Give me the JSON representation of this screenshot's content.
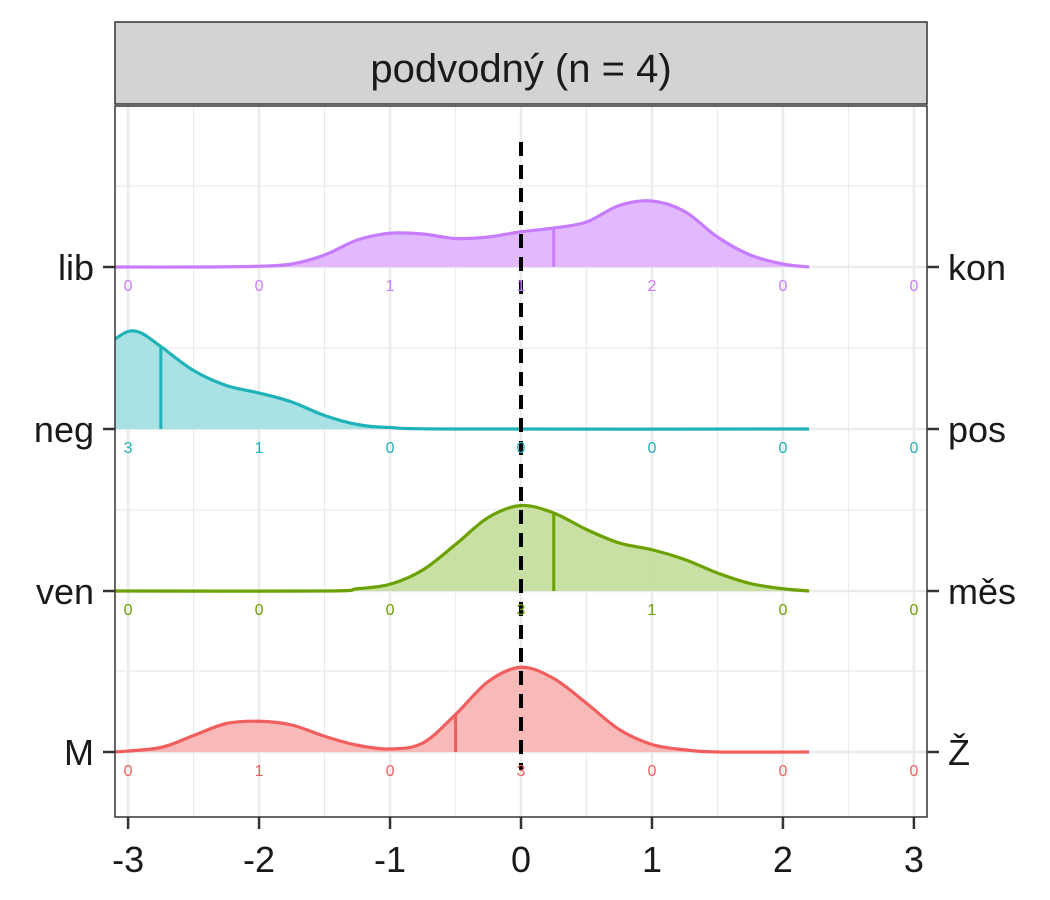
{
  "chart_data": {
    "type": "area",
    "title": "podvodný (n = 4)",
    "xlim": [
      -3.1,
      3.1
    ],
    "x_ticks": [
      -3,
      -2,
      -1,
      0,
      1,
      2,
      3
    ],
    "x_tick_labels": [
      "-3",
      "-2",
      "-1",
      "0",
      "1",
      "2",
      "3"
    ],
    "grid": true,
    "reference_line_x": 0,
    "count_positions": [
      -3,
      -2,
      -1,
      0,
      1,
      2,
      3
    ],
    "series": [
      {
        "left_label": "lib",
        "right_label": "kon",
        "color": "#C77CFF",
        "fill": "#E0B5FF",
        "mean_marker": 0.25,
        "counts": [
          "0",
          "0",
          "1",
          "1",
          "2",
          "0",
          "0"
        ],
        "density": [
          [
            -3.1,
            0.0
          ],
          [
            -2.5,
            0.0
          ],
          [
            -2.0,
            0.01
          ],
          [
            -1.75,
            0.04
          ],
          [
            -1.5,
            0.16
          ],
          [
            -1.25,
            0.36
          ],
          [
            -1.0,
            0.45
          ],
          [
            -0.75,
            0.44
          ],
          [
            -0.5,
            0.38
          ],
          [
            -0.25,
            0.4
          ],
          [
            0.0,
            0.47
          ],
          [
            0.25,
            0.52
          ],
          [
            0.5,
            0.6
          ],
          [
            0.75,
            0.82
          ],
          [
            1.0,
            0.88
          ],
          [
            1.25,
            0.74
          ],
          [
            1.5,
            0.4
          ],
          [
            1.75,
            0.16
          ],
          [
            2.0,
            0.04
          ],
          [
            2.2,
            0.0
          ]
        ]
      },
      {
        "left_label": "neg",
        "right_label": "pos",
        "color": "#1FB2B8",
        "fill": "#A3E0E3",
        "mean_marker": -2.75,
        "counts": [
          "3",
          "1",
          "0",
          "0",
          "0",
          "0",
          "0"
        ],
        "density": [
          [
            -3.1,
            1.2
          ],
          [
            -3.0,
            1.3
          ],
          [
            -2.9,
            1.28
          ],
          [
            -2.75,
            1.1
          ],
          [
            -2.5,
            0.78
          ],
          [
            -2.25,
            0.58
          ],
          [
            -2.0,
            0.48
          ],
          [
            -1.75,
            0.36
          ],
          [
            -1.5,
            0.18
          ],
          [
            -1.25,
            0.06
          ],
          [
            -1.0,
            0.02
          ],
          [
            -0.5,
            0.0
          ],
          [
            2.2,
            0.0
          ]
        ]
      },
      {
        "left_label": "ven",
        "right_label": "měs",
        "color": "#6BA100",
        "fill": "#C5DE9E",
        "mean_marker": 0.25,
        "counts": [
          "0",
          "0",
          "0",
          "3",
          "1",
          "0",
          "0"
        ],
        "density": [
          [
            -3.1,
            0.0
          ],
          [
            -1.5,
            0.0
          ],
          [
            -1.25,
            0.03
          ],
          [
            -1.0,
            0.09
          ],
          [
            -0.75,
            0.28
          ],
          [
            -0.5,
            0.62
          ],
          [
            -0.25,
            0.98
          ],
          [
            0.0,
            1.14
          ],
          [
            0.25,
            1.04
          ],
          [
            0.5,
            0.82
          ],
          [
            0.75,
            0.64
          ],
          [
            1.0,
            0.55
          ],
          [
            1.25,
            0.42
          ],
          [
            1.5,
            0.24
          ],
          [
            1.75,
            0.1
          ],
          [
            2.0,
            0.03
          ],
          [
            2.2,
            0.0
          ]
        ]
      },
      {
        "left_label": "M",
        "right_label": "Ž",
        "color": "#F25E5E",
        "fill": "#F8B6B4",
        "mean_marker": -0.5,
        "counts": [
          "0",
          "1",
          "0",
          "3",
          "0",
          "0",
          "0"
        ],
        "density": [
          [
            -3.1,
            0.0
          ],
          [
            -2.75,
            0.06
          ],
          [
            -2.5,
            0.22
          ],
          [
            -2.25,
            0.38
          ],
          [
            -2.0,
            0.41
          ],
          [
            -1.75,
            0.36
          ],
          [
            -1.5,
            0.21
          ],
          [
            -1.25,
            0.09
          ],
          [
            -1.0,
            0.04
          ],
          [
            -0.75,
            0.12
          ],
          [
            -0.5,
            0.5
          ],
          [
            -0.25,
            0.94
          ],
          [
            0.0,
            1.13
          ],
          [
            0.25,
            0.98
          ],
          [
            0.5,
            0.65
          ],
          [
            0.75,
            0.3
          ],
          [
            1.0,
            0.1
          ],
          [
            1.25,
            0.03
          ],
          [
            1.5,
            0.0
          ],
          [
            2.2,
            0.0
          ]
        ]
      }
    ]
  }
}
